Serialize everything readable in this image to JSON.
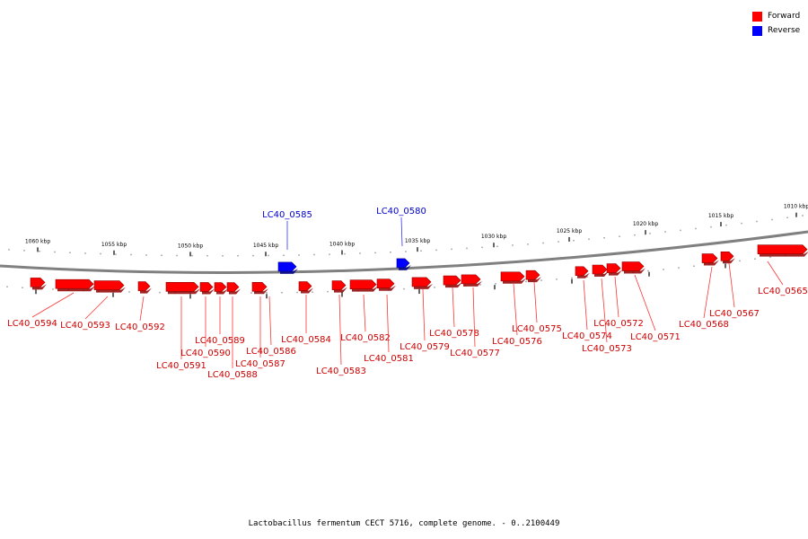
{
  "colors": {
    "forward": "#ff0000",
    "reverse": "#0000ff",
    "backbone": "#808080",
    "label_forward": "#cc0000",
    "label_reverse": "#0000cc"
  },
  "legend": {
    "forward_label": "Forward",
    "reverse_label": "Reverse"
  },
  "caption": "Lactobacillus fermentum CECT 5716, complete genome. - 0..2100449",
  "scale": {
    "unit": "kbp",
    "ticks": [
      "1060 kbp",
      "1055 kbp",
      "1050 kbp",
      "1045 kbp",
      "1040 kbp",
      "1035 kbp",
      "1030 kbp",
      "1025 kbp",
      "1020 kbp",
      "1015 kbp",
      "1010 kbp"
    ]
  },
  "genes": [
    {
      "id": "LC40_0594",
      "strand": "forward"
    },
    {
      "id": "LC40_0593",
      "strand": "forward"
    },
    {
      "id": "LC40_0592",
      "strand": "forward"
    },
    {
      "id": "LC40_0591",
      "strand": "forward"
    },
    {
      "id": "LC40_0590",
      "strand": "forward"
    },
    {
      "id": "LC40_0589",
      "strand": "forward"
    },
    {
      "id": "LC40_0588",
      "strand": "forward"
    },
    {
      "id": "LC40_0587",
      "strand": "forward"
    },
    {
      "id": "LC40_0586",
      "strand": "forward"
    },
    {
      "id": "LC40_0585",
      "strand": "reverse"
    },
    {
      "id": "LC40_0584",
      "strand": "forward"
    },
    {
      "id": "LC40_0583",
      "strand": "forward"
    },
    {
      "id": "LC40_0582",
      "strand": "forward"
    },
    {
      "id": "LC40_0581",
      "strand": "forward"
    },
    {
      "id": "LC40_0580",
      "strand": "reverse"
    },
    {
      "id": "LC40_0579",
      "strand": "forward"
    },
    {
      "id": "LC40_0578",
      "strand": "forward"
    },
    {
      "id": "LC40_0577",
      "strand": "forward"
    },
    {
      "id": "LC40_0576",
      "strand": "forward"
    },
    {
      "id": "LC40_0575",
      "strand": "forward"
    },
    {
      "id": "LC40_0574",
      "strand": "forward"
    },
    {
      "id": "LC40_0573",
      "strand": "forward"
    },
    {
      "id": "LC40_0572",
      "strand": "forward"
    },
    {
      "id": "LC40_0571",
      "strand": "forward"
    },
    {
      "id": "LC40_0568",
      "strand": "forward"
    },
    {
      "id": "LC40_0567",
      "strand": "forward"
    },
    {
      "id": "LC40_0565",
      "strand": "forward"
    }
  ]
}
